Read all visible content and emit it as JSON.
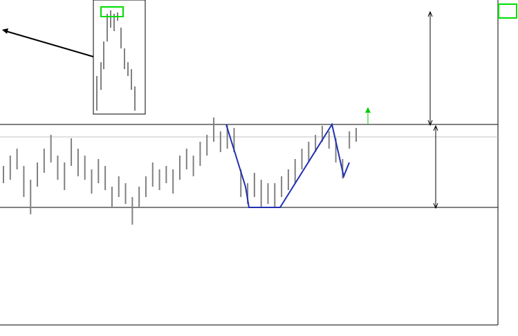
{
  "chart_data": {
    "type": "range",
    "color": "#808080",
    "high": [
      230,
      245,
      255,
      230,
      210,
      235,
      255,
      275,
      245,
      235,
      270,
      255,
      245,
      225,
      240,
      230,
      200,
      215,
      205,
      185,
      200,
      215,
      235,
      225,
      230,
      225,
      245,
      255,
      245,
      265,
      275,
      300,
      280,
      290,
      285,
      225,
      205,
      220,
      210,
      205,
      205,
      215,
      225,
      240,
      255,
      265,
      275,
      288,
      280,
      270,
      240,
      280,
      285
    ],
    "low": [
      205,
      210,
      225,
      185,
      160,
      200,
      220,
      235,
      210,
      195,
      230,
      215,
      210,
      190,
      205,
      195,
      170,
      185,
      175,
      145,
      170,
      185,
      200,
      195,
      205,
      190,
      210,
      225,
      215,
      230,
      245,
      265,
      250,
      255,
      250,
      185,
      175,
      185,
      170,
      175,
      170,
      185,
      195,
      205,
      225,
      235,
      250,
      265,
      255,
      235,
      212,
      255,
      265
    ],
    "ylim": [
      0,
      470
    ],
    "levels": [
      290,
      170
    ],
    "level_color": "#000000",
    "price_line": 272,
    "price_line_color": "#c0c0c0"
  }
}
